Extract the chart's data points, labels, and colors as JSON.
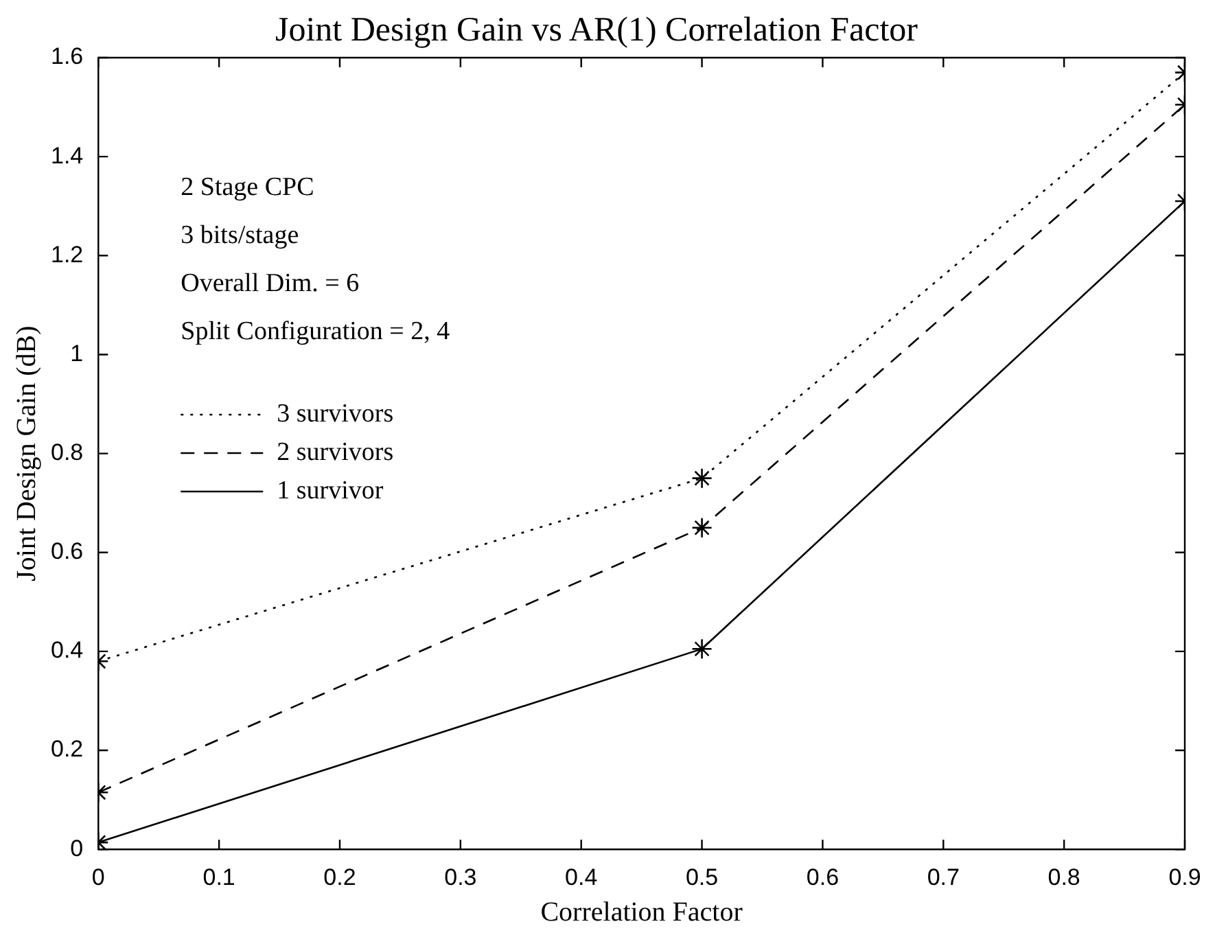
{
  "chart_data": {
    "type": "line",
    "title": "Joint Design Gain vs AR(1) Correlation Factor",
    "xlabel": "Correlation Factor",
    "ylabel": "Joint Design Gain (dB)",
    "x": [
      0,
      0.5,
      0.9
    ],
    "series": [
      {
        "name": "3 survivors",
        "color": "#000000",
        "line_style": "dotted",
        "values": [
          0.38,
          0.75,
          1.57
        ]
      },
      {
        "name": "2 survivors",
        "color": "#000000",
        "line_style": "dashed",
        "values": [
          0.115,
          0.65,
          1.505
        ]
      },
      {
        "name": "1 survivor",
        "color": "#000000",
        "line_style": "solid",
        "values": [
          0.014,
          0.405,
          1.31
        ]
      }
    ],
    "xlim": [
      0,
      0.9
    ],
    "xticks": [
      0,
      0.1,
      0.2,
      0.3,
      0.4,
      0.5,
      0.6,
      0.7,
      0.8,
      0.9
    ],
    "ylim": [
      0,
      1.6
    ],
    "yticks": [
      0,
      0.2,
      0.4,
      0.6,
      0.8,
      1,
      1.2,
      1.4,
      1.6
    ],
    "annotations": [
      "2 Stage CPC",
      "3 bits/stage",
      "Overall Dim. = 6",
      "Split Configuration = 2, 4"
    ],
    "legend": "top left",
    "marker": "cross",
    "grid": false
  }
}
